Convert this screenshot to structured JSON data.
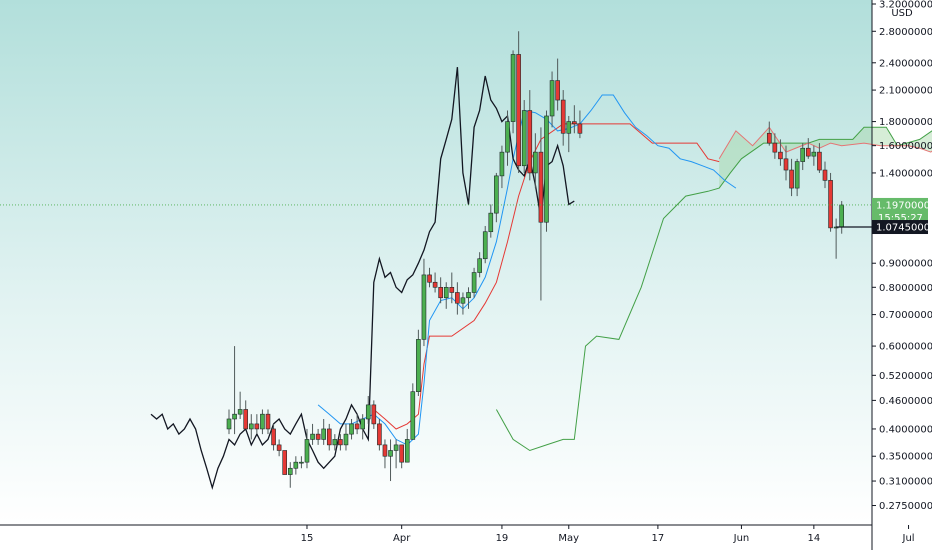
{
  "chart_data": {
    "type": "candlestick",
    "currency": "USD",
    "ylim": [
      0.25,
      3.2
    ],
    "scale": "log",
    "y_ticks": [
      {
        "value": 3.2,
        "label": "3.20000000"
      },
      {
        "value": 2.8,
        "label": "2.80000000"
      },
      {
        "value": 2.4,
        "label": "2.40000000"
      },
      {
        "value": 2.1,
        "label": "2.10000000"
      },
      {
        "value": 1.8,
        "label": "1.80000000"
      },
      {
        "value": 1.6,
        "label": "1.60000000"
      },
      {
        "value": 1.4,
        "label": "1.40000000"
      },
      {
        "value": 0.9,
        "label": "0.90000000"
      },
      {
        "value": 0.8,
        "label": "0.80000000"
      },
      {
        "value": 0.7,
        "label": "0.70000000"
      },
      {
        "value": 0.6,
        "label": "0.60000000"
      },
      {
        "value": 0.52,
        "label": "0.52000000"
      },
      {
        "value": 0.46,
        "label": "0.46000000"
      },
      {
        "value": 0.4,
        "label": "0.40000000"
      },
      {
        "value": 0.35,
        "label": "0.35000000"
      },
      {
        "value": 0.31,
        "label": "0.31000000"
      },
      {
        "value": 0.275,
        "label": "0.27500000"
      }
    ],
    "x_ticks": [
      {
        "day": 14,
        "label": "15"
      },
      {
        "day": 31,
        "label": "Apr"
      },
      {
        "day": 49,
        "label": "19"
      },
      {
        "day": 61,
        "label": "May"
      },
      {
        "day": 77,
        "label": "17"
      },
      {
        "day": 92,
        "label": "Jun"
      },
      {
        "day": 105,
        "label": "14"
      },
      {
        "day": 122,
        "label": "Jul"
      }
    ],
    "last_price": {
      "value": 1.197,
      "label": "1.19700000",
      "countdown": "15:55:27"
    },
    "marked_price": {
      "value": 1.0745,
      "label": "1.07450000"
    },
    "candles": [
      [
        0.4,
        0.44,
        0.39,
        0.42
      ],
      [
        0.42,
        0.6,
        0.39,
        0.43
      ],
      [
        0.43,
        0.48,
        0.42,
        0.44
      ],
      [
        0.44,
        0.46,
        0.41,
        0.4
      ],
      [
        0.4,
        0.43,
        0.38,
        0.41
      ],
      [
        0.41,
        0.43,
        0.39,
        0.4
      ],
      [
        0.4,
        0.44,
        0.39,
        0.43
      ],
      [
        0.43,
        0.44,
        0.39,
        0.4
      ],
      [
        0.4,
        0.41,
        0.36,
        0.37
      ],
      [
        0.37,
        0.38,
        0.35,
        0.36
      ],
      [
        0.36,
        0.36,
        0.32,
        0.32
      ],
      [
        0.32,
        0.34,
        0.3,
        0.33
      ],
      [
        0.33,
        0.35,
        0.32,
        0.34
      ],
      [
        0.34,
        0.35,
        0.33,
        0.34
      ],
      [
        0.34,
        0.4,
        0.33,
        0.38
      ],
      [
        0.38,
        0.41,
        0.37,
        0.39
      ],
      [
        0.39,
        0.4,
        0.37,
        0.38
      ],
      [
        0.38,
        0.42,
        0.37,
        0.4
      ],
      [
        0.4,
        0.41,
        0.36,
        0.37
      ],
      [
        0.37,
        0.39,
        0.36,
        0.38
      ],
      [
        0.38,
        0.39,
        0.36,
        0.37
      ],
      [
        0.37,
        0.41,
        0.36,
        0.39
      ],
      [
        0.39,
        0.42,
        0.38,
        0.41
      ],
      [
        0.41,
        0.43,
        0.39,
        0.4
      ],
      [
        0.4,
        0.43,
        0.38,
        0.42
      ],
      [
        0.42,
        0.47,
        0.41,
        0.45
      ],
      [
        0.45,
        0.46,
        0.4,
        0.41
      ],
      [
        0.41,
        0.42,
        0.36,
        0.37
      ],
      [
        0.37,
        0.38,
        0.33,
        0.35
      ],
      [
        0.35,
        0.38,
        0.31,
        0.36
      ],
      [
        0.36,
        0.38,
        0.33,
        0.37
      ],
      [
        0.37,
        0.37,
        0.33,
        0.34
      ],
      [
        0.34,
        0.4,
        0.34,
        0.38
      ],
      [
        0.38,
        0.5,
        0.38,
        0.48
      ],
      [
        0.48,
        0.65,
        0.47,
        0.62
      ],
      [
        0.62,
        0.92,
        0.6,
        0.85
      ],
      [
        0.85,
        0.88,
        0.8,
        0.82
      ],
      [
        0.82,
        0.86,
        0.78,
        0.8
      ],
      [
        0.8,
        0.84,
        0.74,
        0.76
      ],
      [
        0.76,
        0.82,
        0.72,
        0.8
      ],
      [
        0.8,
        0.86,
        0.74,
        0.78
      ],
      [
        0.78,
        0.82,
        0.7,
        0.74
      ],
      [
        0.74,
        0.78,
        0.7,
        0.76
      ],
      [
        0.76,
        0.8,
        0.72,
        0.78
      ],
      [
        0.78,
        0.88,
        0.76,
        0.86
      ],
      [
        0.86,
        0.95,
        0.84,
        0.92
      ],
      [
        0.92,
        1.08,
        0.9,
        1.05
      ],
      [
        1.05,
        1.2,
        1.02,
        1.15
      ],
      [
        1.15,
        1.4,
        1.1,
        1.38
      ],
      [
        1.38,
        1.6,
        1.3,
        1.55
      ],
      [
        1.55,
        1.9,
        1.45,
        1.8
      ],
      [
        1.8,
        2.55,
        1.7,
        2.5
      ],
      [
        2.5,
        2.8,
        1.4,
        1.45
      ],
      [
        1.45,
        2.0,
        1.4,
        1.9
      ],
      [
        1.9,
        2.1,
        1.35,
        1.4
      ],
      [
        1.4,
        1.7,
        1.3,
        1.55
      ],
      [
        1.55,
        1.75,
        0.75,
        1.1
      ],
      [
        1.1,
        1.9,
        1.05,
        1.85
      ],
      [
        1.85,
        2.3,
        1.75,
        2.2
      ],
      [
        2.2,
        2.45,
        1.9,
        2.0
      ],
      [
        2.0,
        2.1,
        1.6,
        1.7
      ],
      [
        1.7,
        1.85,
        1.55,
        1.8
      ],
      [
        1.8,
        1.95,
        1.7,
        1.78
      ],
      [
        1.78,
        1.9,
        1.66,
        1.7
      ]
    ],
    "candles_day_start": 0,
    "candles_recent": [
      [
        1.7,
        1.8,
        1.6,
        1.62
      ],
      [
        1.62,
        1.7,
        1.5,
        1.55
      ],
      [
        1.55,
        1.65,
        1.45,
        1.5
      ],
      [
        1.5,
        1.6,
        1.35,
        1.42
      ],
      [
        1.42,
        1.5,
        1.25,
        1.3
      ],
      [
        1.3,
        1.5,
        1.25,
        1.48
      ],
      [
        1.48,
        1.62,
        1.42,
        1.58
      ],
      [
        1.58,
        1.66,
        1.5,
        1.52
      ],
      [
        1.52,
        1.6,
        1.45,
        1.55
      ],
      [
        1.55,
        1.62,
        1.4,
        1.42
      ],
      [
        1.42,
        1.48,
        1.3,
        1.35
      ],
      [
        1.35,
        1.4,
        1.05,
        1.07
      ],
      [
        1.07,
        1.12,
        0.92,
        1.0745
      ],
      [
        1.0745,
        1.22,
        1.04,
        1.197
      ]
    ],
    "candles_recent_day_start": 97,
    "lagging_span": [
      [
        -14,
        0.43
      ],
      [
        -13,
        0.42
      ],
      [
        -12,
        0.43
      ],
      [
        -11,
        0.4
      ],
      [
        -10,
        0.41
      ],
      [
        -9,
        0.39
      ],
      [
        -8,
        0.4
      ],
      [
        -7,
        0.42
      ],
      [
        -6,
        0.4
      ],
      [
        -5,
        0.36
      ],
      [
        -4,
        0.33
      ],
      [
        -3,
        0.3
      ],
      [
        -2,
        0.33
      ],
      [
        -1,
        0.35
      ],
      [
        0,
        0.38
      ],
      [
        1,
        0.37
      ],
      [
        2,
        0.39
      ],
      [
        3,
        0.4
      ],
      [
        4,
        0.37
      ],
      [
        5,
        0.39
      ],
      [
        6,
        0.37
      ],
      [
        7,
        0.38
      ],
      [
        8,
        0.41
      ],
      [
        9,
        0.42
      ],
      [
        10,
        0.4
      ],
      [
        11,
        0.39
      ],
      [
        12,
        0.41
      ],
      [
        13,
        0.43
      ],
      [
        14,
        0.38
      ],
      [
        15,
        0.36
      ],
      [
        16,
        0.34
      ],
      [
        17,
        0.33
      ],
      [
        18,
        0.34
      ],
      [
        19,
        0.35
      ],
      [
        20,
        0.4
      ],
      [
        21,
        0.42
      ],
      [
        22,
        0.45
      ],
      [
        23,
        0.43
      ],
      [
        24,
        0.4
      ],
      [
        25,
        0.38
      ],
      [
        26,
        0.82
      ],
      [
        27,
        0.92
      ],
      [
        28,
        0.84
      ],
      [
        29,
        0.86
      ],
      [
        30,
        0.8
      ],
      [
        31,
        0.78
      ],
      [
        32,
        0.83
      ],
      [
        33,
        0.85
      ],
      [
        34,
        0.9
      ],
      [
        35,
        0.96
      ],
      [
        36,
        1.05
      ],
      [
        37,
        1.1
      ],
      [
        38,
        1.5
      ],
      [
        39,
        1.65
      ],
      [
        40,
        1.82
      ],
      [
        41,
        2.35
      ],
      [
        42,
        1.4
      ],
      [
        43,
        1.2
      ],
      [
        44,
        1.75
      ],
      [
        45,
        1.9
      ],
      [
        46,
        2.25
      ],
      [
        47,
        2.0
      ],
      [
        48,
        1.92
      ],
      [
        49,
        1.8
      ],
      [
        50,
        1.85
      ],
      [
        51,
        1.5
      ],
      [
        52,
        1.42
      ],
      [
        53,
        1.38
      ],
      [
        54,
        1.5
      ],
      [
        55,
        1.32
      ],
      [
        56,
        1.12
      ],
      [
        57,
        1.45
      ],
      [
        58,
        1.48
      ],
      [
        59,
        1.6
      ],
      [
        60,
        1.45
      ],
      [
        61,
        1.2
      ],
      [
        62,
        1.22
      ]
    ],
    "tenkan": [
      [
        16,
        0.45
      ],
      [
        18,
        0.43
      ],
      [
        20,
        0.41
      ],
      [
        22,
        0.41
      ],
      [
        24,
        0.42
      ],
      [
        26,
        0.43
      ],
      [
        28,
        0.41
      ],
      [
        30,
        0.38
      ],
      [
        32,
        0.37
      ],
      [
        34,
        0.39
      ],
      [
        35,
        0.5
      ],
      [
        36,
        0.68
      ],
      [
        38,
        0.75
      ],
      [
        40,
        0.76
      ],
      [
        42,
        0.72
      ],
      [
        44,
        0.76
      ],
      [
        46,
        0.84
      ],
      [
        48,
        1.0
      ],
      [
        50,
        1.3
      ],
      [
        51,
        1.5
      ],
      [
        53,
        1.9
      ],
      [
        55,
        1.88
      ],
      [
        57,
        1.82
      ],
      [
        59,
        1.72
      ],
      [
        61,
        1.74
      ],
      [
        63,
        1.78
      ],
      [
        65,
        1.9
      ],
      [
        67,
        2.05
      ],
      [
        69,
        2.05
      ],
      [
        71,
        1.88
      ],
      [
        73,
        1.75
      ],
      [
        75,
        1.68
      ],
      [
        77,
        1.6
      ],
      [
        79,
        1.58
      ],
      [
        81,
        1.5
      ],
      [
        83,
        1.48
      ],
      [
        85,
        1.45
      ],
      [
        87,
        1.42
      ],
      [
        89,
        1.35
      ],
      [
        91,
        1.3
      ]
    ],
    "kijun": [
      [
        26,
        0.44
      ],
      [
        28,
        0.42
      ],
      [
        30,
        0.4
      ],
      [
        32,
        0.41
      ],
      [
        34,
        0.43
      ],
      [
        35,
        0.55
      ],
      [
        36,
        0.63
      ],
      [
        40,
        0.63
      ],
      [
        44,
        0.68
      ],
      [
        46,
        0.74
      ],
      [
        48,
        0.82
      ],
      [
        50,
        1.0
      ],
      [
        52,
        1.25
      ],
      [
        54,
        1.48
      ],
      [
        56,
        1.65
      ],
      [
        60,
        1.78
      ],
      [
        64,
        1.78
      ],
      [
        72,
        1.78
      ],
      [
        76,
        1.62
      ],
      [
        80,
        1.62
      ],
      [
        84,
        1.62
      ],
      [
        86,
        1.5
      ],
      [
        88,
        1.48
      ]
    ],
    "senkou_a": [
      [
        88,
        1.5
      ],
      [
        91,
        1.72
      ],
      [
        94,
        1.6
      ],
      [
        97,
        1.75
      ],
      [
        100,
        1.55
      ],
      [
        104,
        1.62
      ],
      [
        106,
        1.58
      ],
      [
        108,
        1.62
      ],
      [
        110,
        1.6
      ],
      [
        114,
        1.62
      ],
      [
        117,
        1.6
      ],
      [
        122,
        1.6
      ],
      [
        124,
        1.58
      ],
      [
        126,
        1.55
      ],
      [
        128,
        1.62
      ],
      [
        130,
        1.55
      ],
      [
        132,
        1.4
      ],
      [
        134,
        1.38
      ]
    ],
    "senkou_b": [
      [
        48,
        0.44
      ],
      [
        51,
        0.38
      ],
      [
        54,
        0.36
      ],
      [
        57,
        0.37
      ],
      [
        60,
        0.38
      ],
      [
        62,
        0.38
      ],
      [
        64,
        0.6
      ],
      [
        66,
        0.63
      ],
      [
        70,
        0.62
      ],
      [
        74,
        0.8
      ],
      [
        78,
        1.12
      ],
      [
        82,
        1.25
      ],
      [
        86,
        1.28
      ],
      [
        88,
        1.3
      ],
      [
        90,
        1.4
      ],
      [
        92,
        1.5
      ],
      [
        96,
        1.62
      ],
      [
        104,
        1.62
      ],
      [
        106,
        1.65
      ],
      [
        112,
        1.65
      ],
      [
        114,
        1.75
      ],
      [
        118,
        1.75
      ],
      [
        120,
        1.6
      ],
      [
        124,
        1.65
      ],
      [
        128,
        1.78
      ],
      [
        132,
        1.8
      ],
      [
        134,
        1.78
      ]
    ]
  }
}
